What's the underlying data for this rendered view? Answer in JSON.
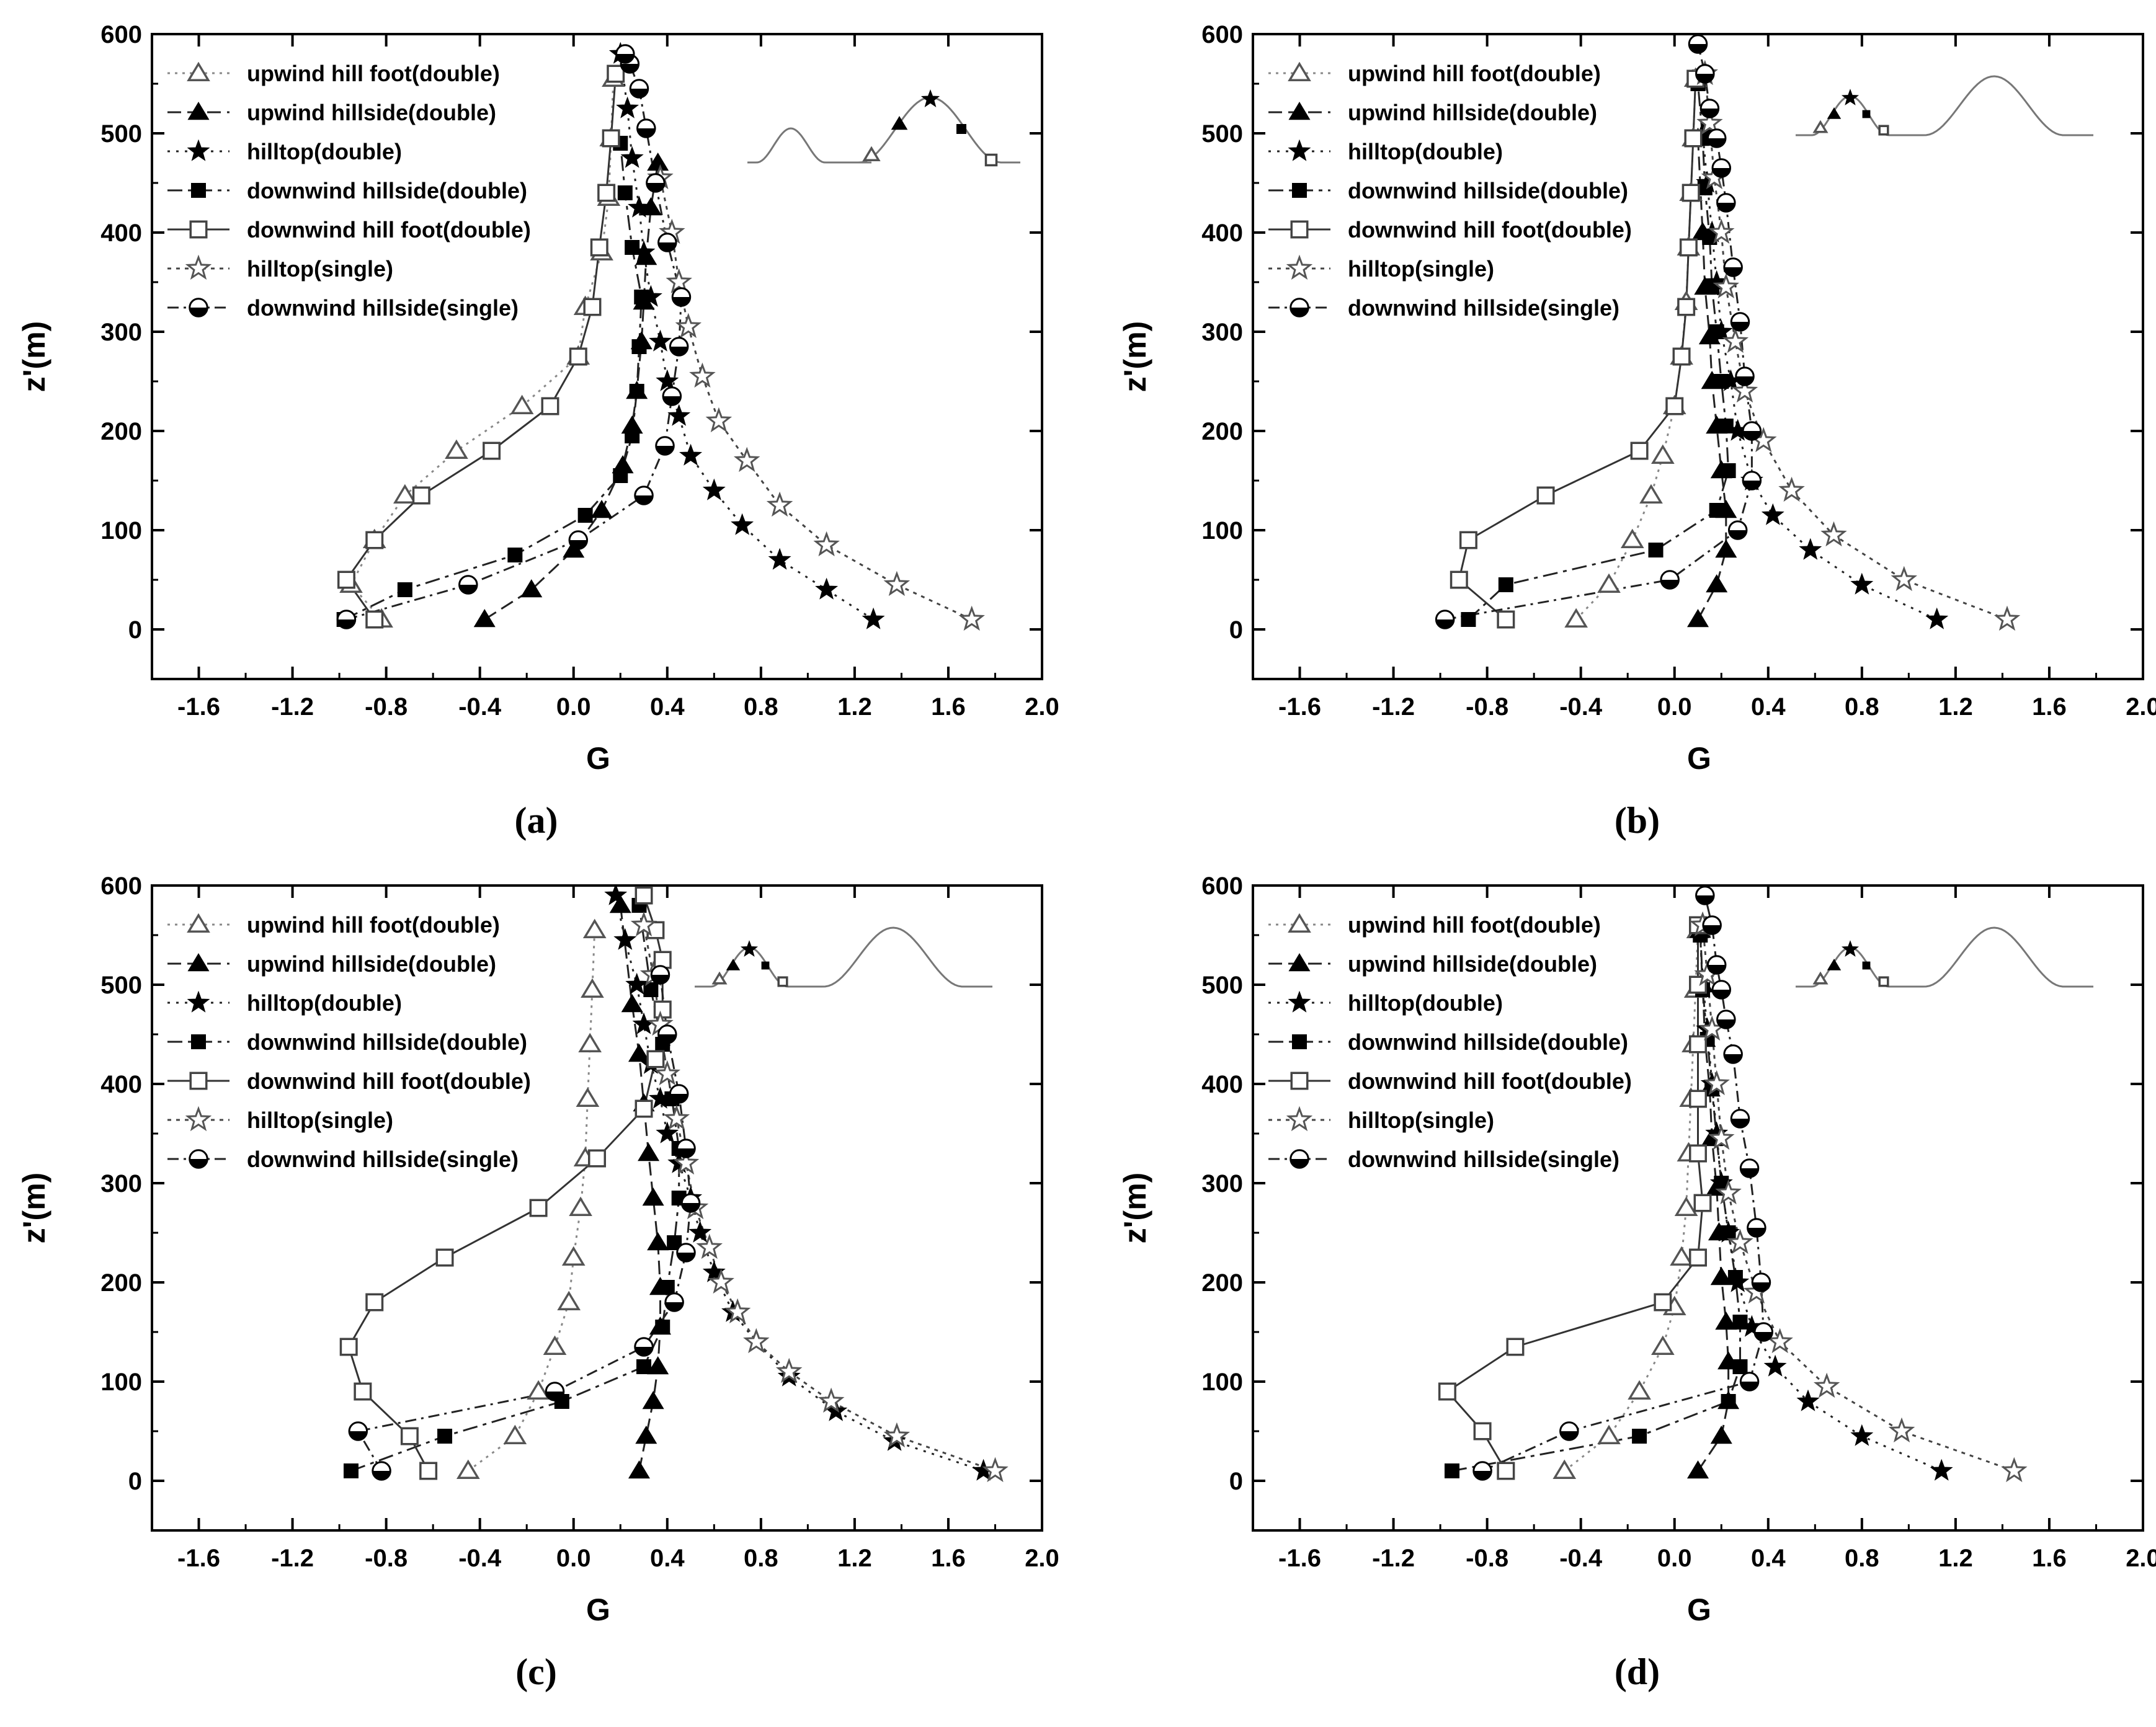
{
  "legend_entries": [
    "upwind hill foot(double)",
    "upwind hillside(double)",
    "hilltop(double)",
    "downwind hillside(double)",
    "downwind hill foot(double)",
    "hilltop(single)",
    "downwind hillside(single)"
  ],
  "chart_data": [
    {
      "type": "line",
      "panel_label": "(a)",
      "xlabel": "G",
      "ylabel": "z'(m)",
      "xlim": [
        -1.8,
        2.0
      ],
      "ylim": [
        -50,
        600
      ],
      "xticks": [
        "-1.6",
        "-1.2",
        "-0.8",
        "-0.4",
        "0.0",
        "0.4",
        "0.8",
        "1.2",
        "1.6",
        "2.0"
      ],
      "yticks": [
        "0",
        "100",
        "200",
        "300",
        "400",
        "500",
        "600"
      ],
      "inset": "hills",
      "inset_layout": "target hill right",
      "series": [
        {
          "name": "upwind hill foot(double)",
          "x": [
            -0.82,
            -0.95,
            -0.85,
            -0.72,
            -0.5,
            -0.22,
            0.02,
            0.05,
            0.12,
            0.15,
            0.16,
            0.17
          ],
          "y": [
            10,
            45,
            90,
            135,
            180,
            225,
            275,
            325,
            380,
            435,
            495,
            555
          ]
        },
        {
          "name": "upwind hillside(double)",
          "x": [
            -0.38,
            -0.18,
            0.0,
            0.12,
            0.21,
            0.25,
            0.27,
            0.29,
            0.3,
            0.31,
            0.33,
            0.36
          ],
          "y": [
            10,
            40,
            80,
            120,
            165,
            205,
            240,
            290,
            330,
            375,
            425,
            470
          ]
        },
        {
          "name": "hilltop(double)",
          "x": [
            1.28,
            1.08,
            0.88,
            0.72,
            0.6,
            0.5,
            0.45,
            0.4,
            0.37,
            0.33,
            0.3,
            0.28,
            0.25,
            0.23,
            0.2
          ],
          "y": [
            10,
            40,
            70,
            105,
            140,
            175,
            215,
            250,
            290,
            335,
            380,
            425,
            475,
            525,
            580
          ]
        },
        {
          "name": "downwind hillside(double)",
          "x": [
            -0.98,
            -0.72,
            -0.25,
            0.05,
            0.2,
            0.25,
            0.27,
            0.28,
            0.29,
            0.25,
            0.22,
            0.2
          ],
          "y": [
            10,
            40,
            75,
            115,
            155,
            195,
            240,
            285,
            335,
            385,
            440,
            490
          ]
        },
        {
          "name": "downwind hill foot(double)",
          "x": [
            -0.85,
            -0.97,
            -0.85,
            -0.65,
            -0.35,
            -0.1,
            0.02,
            0.08,
            0.11,
            0.14,
            0.16,
            0.18
          ],
          "y": [
            10,
            50,
            90,
            135,
            180,
            225,
            275,
            325,
            385,
            440,
            495,
            560
          ]
        },
        {
          "name": "hilltop(single)",
          "x": [
            1.7,
            1.38,
            1.08,
            0.88,
            0.74,
            0.62,
            0.55,
            0.49,
            0.45,
            0.42,
            0.37
          ],
          "y": [
            10,
            45,
            85,
            125,
            170,
            210,
            255,
            305,
            350,
            400,
            455
          ]
        },
        {
          "name": "downwind hillside(single)",
          "x": [
            -0.97,
            -0.45,
            0.02,
            0.3,
            0.39,
            0.42,
            0.45,
            0.46,
            0.4,
            0.35,
            0.31,
            0.28,
            0.24,
            0.22
          ],
          "y": [
            10,
            45,
            90,
            135,
            185,
            235,
            285,
            335,
            390,
            450,
            505,
            545,
            570,
            580
          ]
        }
      ]
    },
    {
      "type": "line",
      "panel_label": "(b)",
      "xlabel": "G",
      "ylabel": "z'(m)",
      "xlim": [
        -1.8,
        2.0
      ],
      "ylim": [
        -50,
        600
      ],
      "xticks": [
        "-1.6",
        "-1.2",
        "-0.8",
        "-0.4",
        "0.0",
        "0.4",
        "0.8",
        "1.2",
        "1.6",
        "2.0"
      ],
      "yticks": [
        "0",
        "100",
        "200",
        "300",
        "400",
        "500",
        "600"
      ],
      "inset": "hills",
      "inset_layout": "target hill left",
      "series": [
        {
          "name": "upwind hill foot(double)",
          "x": [
            -0.42,
            -0.28,
            -0.18,
            -0.1,
            -0.05,
            0.0,
            0.03,
            0.05,
            0.06,
            0.07,
            0.08,
            0.09
          ],
          "y": [
            10,
            45,
            90,
            135,
            175,
            225,
            275,
            330,
            385,
            440,
            495,
            555
          ]
        },
        {
          "name": "upwind hillside(double)",
          "x": [
            0.1,
            0.18,
            0.22,
            0.22,
            0.2,
            0.18,
            0.16,
            0.15,
            0.13,
            0.12,
            0.1
          ],
          "y": [
            10,
            45,
            80,
            120,
            160,
            205,
            250,
            295,
            345,
            400,
            495
          ]
        },
        {
          "name": "hilltop(double)",
          "x": [
            1.12,
            0.8,
            0.58,
            0.42,
            0.33,
            0.27,
            0.24,
            0.2,
            0.18,
            0.16,
            0.14,
            0.12
          ],
          "y": [
            10,
            45,
            80,
            115,
            150,
            200,
            250,
            300,
            350,
            400,
            450,
            500
          ]
        },
        {
          "name": "downwind hillside(double)",
          "x": [
            -0.88,
            -0.72,
            -0.08,
            0.18,
            0.23,
            0.22,
            0.2,
            0.18,
            0.16,
            0.15,
            0.13,
            0.12,
            0.1
          ],
          "y": [
            10,
            45,
            80,
            120,
            160,
            205,
            250,
            300,
            345,
            395,
            445,
            495,
            550
          ]
        },
        {
          "name": "downwind hill foot(double)",
          "x": [
            -0.72,
            -0.92,
            -0.88,
            -0.55,
            -0.15,
            0.0,
            0.03,
            0.05,
            0.06,
            0.07,
            0.08,
            0.09
          ],
          "y": [
            10,
            50,
            90,
            135,
            180,
            225,
            275,
            325,
            385,
            440,
            495,
            555
          ]
        },
        {
          "name": "hilltop(single)",
          "x": [
            1.42,
            0.98,
            0.68,
            0.5,
            0.38,
            0.3,
            0.26,
            0.22,
            0.2,
            0.17,
            0.15,
            0.13
          ],
          "y": [
            10,
            50,
            95,
            140,
            190,
            240,
            290,
            345,
            400,
            455,
            510,
            560
          ]
        },
        {
          "name": "downwind hillside(single)",
          "x": [
            -0.98,
            -0.02,
            0.27,
            0.33,
            0.33,
            0.3,
            0.28,
            0.25,
            0.22,
            0.2,
            0.18,
            0.15,
            0.13,
            0.1
          ],
          "y": [
            10,
            50,
            100,
            150,
            200,
            255,
            310,
            365,
            430,
            465,
            495,
            525,
            560,
            590
          ]
        }
      ]
    },
    {
      "type": "line",
      "panel_label": "(c)",
      "xlabel": "G",
      "ylabel": "z'(m)",
      "xlim": [
        -1.8,
        2.0
      ],
      "ylim": [
        -50,
        600
      ],
      "xticks": [
        "-1.6",
        "-1.2",
        "-0.8",
        "-0.4",
        "0.0",
        "0.4",
        "0.8",
        "1.2",
        "1.6",
        "2.0"
      ],
      "yticks": [
        "0",
        "100",
        "200",
        "300",
        "400",
        "500",
        "600"
      ],
      "inset": "hills",
      "inset_layout": "target hill left",
      "series": [
        {
          "name": "upwind hill foot(double)",
          "x": [
            -0.45,
            -0.25,
            -0.15,
            -0.08,
            -0.02,
            0.0,
            0.03,
            0.05,
            0.06,
            0.07,
            0.08,
            0.09
          ],
          "y": [
            10,
            45,
            90,
            135,
            180,
            225,
            275,
            325,
            385,
            440,
            495,
            555
          ]
        },
        {
          "name": "upwind hillside(double)",
          "x": [
            0.28,
            0.31,
            0.34,
            0.36,
            0.37,
            0.37,
            0.36,
            0.34,
            0.32,
            0.3,
            0.28,
            0.25,
            0.2
          ],
          "y": [
            10,
            45,
            80,
            115,
            155,
            195,
            240,
            285,
            330,
            380,
            430,
            480,
            580
          ]
        },
        {
          "name": "hilltop(double)",
          "x": [
            1.75,
            1.37,
            1.12,
            0.92,
            0.78,
            0.68,
            0.6,
            0.54,
            0.5,
            0.45,
            0.4,
            0.37,
            0.33,
            0.3,
            0.27,
            0.22,
            0.18
          ],
          "y": [
            10,
            40,
            70,
            105,
            140,
            170,
            210,
            250,
            285,
            320,
            350,
            385,
            420,
            460,
            500,
            545,
            590
          ]
        },
        {
          "name": "downwind hillside(double)",
          "x": [
            -0.95,
            -0.55,
            -0.05,
            0.3,
            0.38,
            0.4,
            0.43,
            0.45,
            0.45,
            0.42,
            0.38,
            0.33,
            0.28
          ],
          "y": [
            10,
            45,
            80,
            115,
            155,
            195,
            240,
            285,
            335,
            385,
            440,
            495,
            580
          ]
        },
        {
          "name": "downwind hill foot(double)",
          "x": [
            -0.62,
            -0.7,
            -0.9,
            -0.96,
            -0.85,
            -0.55,
            -0.15,
            0.1,
            0.3,
            0.35,
            0.38,
            0.38,
            0.35,
            0.3
          ],
          "y": [
            10,
            45,
            90,
            135,
            180,
            225,
            275,
            325,
            375,
            425,
            475,
            525,
            555,
            590
          ]
        },
        {
          "name": "hilltop(single)",
          "x": [
            1.8,
            1.38,
            1.1,
            0.92,
            0.78,
            0.7,
            0.63,
            0.58,
            0.52,
            0.48,
            0.44,
            0.4,
            0.37,
            0.34,
            0.3
          ],
          "y": [
            10,
            45,
            80,
            110,
            140,
            170,
            200,
            235,
            275,
            320,
            365,
            410,
            460,
            510,
            560
          ]
        },
        {
          "name": "downwind hillside(single)",
          "x": [
            -0.82,
            -0.92,
            -0.08,
            0.3,
            0.43,
            0.48,
            0.5,
            0.48,
            0.45,
            0.4,
            0.37
          ],
          "y": [
            10,
            50,
            90,
            135,
            180,
            230,
            280,
            335,
            390,
            450,
            510
          ]
        }
      ]
    },
    {
      "type": "line",
      "panel_label": "(d)",
      "xlabel": "G",
      "ylabel": "z'(m)",
      "xlim": [
        -1.8,
        2.0
      ],
      "ylim": [
        -50,
        600
      ],
      "xticks": [
        "-1.6",
        "-1.2",
        "-0.8",
        "-0.4",
        "0.0",
        "0.4",
        "0.8",
        "1.2",
        "1.6",
        "2.0"
      ],
      "yticks": [
        "0",
        "100",
        "200",
        "300",
        "400",
        "500",
        "600"
      ],
      "inset": "hills",
      "inset_layout": "target hill left",
      "series": [
        {
          "name": "upwind hill foot(double)",
          "x": [
            -0.47,
            -0.28,
            -0.15,
            -0.05,
            0.0,
            0.03,
            0.05,
            0.06,
            0.07,
            0.08,
            0.09,
            0.1
          ],
          "y": [
            10,
            45,
            90,
            135,
            175,
            225,
            275,
            330,
            385,
            440,
            495,
            555
          ]
        },
        {
          "name": "upwind hillside(double)",
          "x": [
            0.1,
            0.2,
            0.23,
            0.23,
            0.22,
            0.2,
            0.19,
            0.18,
            0.16,
            0.15,
            0.13,
            0.12,
            0.11
          ],
          "y": [
            10,
            45,
            80,
            120,
            160,
            205,
            250,
            295,
            345,
            395,
            445,
            500,
            555
          ]
        },
        {
          "name": "hilltop(double)",
          "x": [
            1.14,
            0.8,
            0.57,
            0.43,
            0.33,
            0.27,
            0.23,
            0.2,
            0.18,
            0.16,
            0.14,
            0.12
          ],
          "y": [
            10,
            45,
            80,
            115,
            155,
            200,
            250,
            300,
            350,
            400,
            455,
            505
          ]
        },
        {
          "name": "downwind hillside(double)",
          "x": [
            -0.95,
            -0.15,
            0.23,
            0.28,
            0.28,
            0.26,
            0.23,
            0.2,
            0.18,
            0.16,
            0.14,
            0.12,
            0.11
          ],
          "y": [
            10,
            45,
            80,
            115,
            160,
            205,
            250,
            300,
            345,
            395,
            445,
            495,
            550
          ]
        },
        {
          "name": "downwind hill foot(double)",
          "x": [
            -0.72,
            -0.82,
            -0.97,
            -0.68,
            -0.05,
            0.1,
            0.12,
            0.1,
            0.1,
            0.1,
            0.1,
            0.1
          ],
          "y": [
            10,
            50,
            90,
            135,
            180,
            225,
            280,
            330,
            385,
            440,
            500,
            560
          ]
        },
        {
          "name": "hilltop(single)",
          "x": [
            1.45,
            0.97,
            0.65,
            0.45,
            0.35,
            0.28,
            0.23,
            0.2,
            0.18,
            0.16,
            0.14,
            0.12
          ],
          "y": [
            10,
            50,
            95,
            140,
            190,
            240,
            290,
            345,
            400,
            455,
            510,
            560
          ]
        },
        {
          "name": "downwind hillside(single)",
          "x": [
            -0.82,
            -0.45,
            0.32,
            0.38,
            0.37,
            0.35,
            0.32,
            0.28,
            0.25,
            0.22,
            0.2,
            0.18,
            0.16,
            0.13
          ],
          "y": [
            10,
            50,
            100,
            150,
            200,
            255,
            315,
            365,
            430,
            465,
            495,
            520,
            560,
            590
          ]
        }
      ]
    }
  ]
}
